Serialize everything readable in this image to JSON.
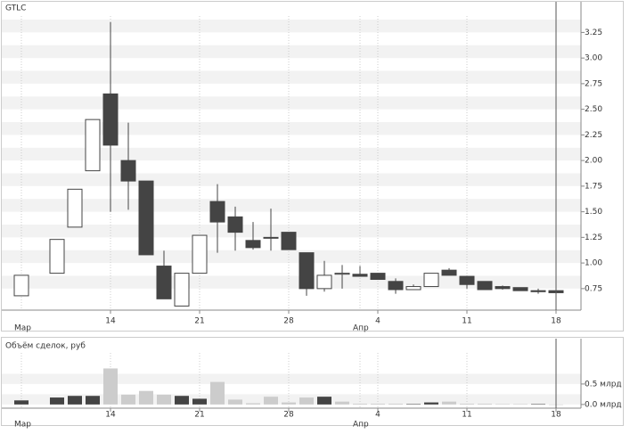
{
  "chart_data": [
    {
      "type": "candlestick",
      "title": "GTLC",
      "x": [
        0,
        2,
        3,
        4,
        5,
        6,
        7,
        8,
        9,
        10,
        11,
        12,
        13,
        14,
        15,
        16,
        17,
        18,
        19,
        20,
        21,
        22,
        23,
        24,
        25,
        26,
        27,
        28,
        29,
        30
      ],
      "open": [
        0.68,
        0.9,
        1.35,
        1.9,
        2.65,
        2.0,
        1.8,
        0.97,
        0.58,
        0.9,
        1.6,
        1.45,
        1.22,
        1.25,
        1.3,
        1.1,
        0.75,
        0.89,
        0.89,
        0.9,
        0.82,
        0.74,
        0.77,
        0.93,
        0.87,
        0.82,
        0.77,
        0.76,
        0.73,
        0.73
      ],
      "high": [
        0.88,
        1.23,
        1.72,
        2.4,
        3.35,
        2.37,
        1.8,
        1.12,
        0.9,
        1.27,
        1.77,
        1.55,
        1.4,
        1.53,
        1.3,
        1.1,
        1.02,
        0.98,
        0.97,
        0.9,
        0.85,
        0.79,
        0.9,
        0.95,
        0.87,
        0.82,
        0.78,
        0.76,
        0.75,
        0.73
      ],
      "low": [
        0.68,
        0.9,
        1.35,
        1.9,
        1.5,
        1.52,
        1.08,
        0.65,
        0.58,
        0.9,
        1.1,
        1.12,
        1.13,
        1.12,
        1.13,
        0.68,
        0.72,
        0.75,
        0.87,
        0.84,
        0.7,
        0.74,
        0.77,
        0.88,
        0.75,
        0.74,
        0.74,
        0.73,
        0.7,
        0.71
      ],
      "close": [
        0.88,
        1.23,
        1.72,
        2.4,
        2.15,
        1.8,
        1.08,
        0.65,
        0.9,
        1.27,
        1.4,
        1.3,
        1.15,
        1.25,
        1.13,
        0.75,
        0.88,
        0.9,
        0.87,
        0.84,
        0.74,
        0.77,
        0.9,
        0.88,
        0.79,
        0.74,
        0.75,
        0.73,
        0.72,
        0.71
      ],
      "up_color": "#ffffff",
      "down_color": "#444444",
      "xlim": [
        -1.1,
        31.4
      ],
      "xticks": [
        {
          "value": 5,
          "label": "14"
        },
        {
          "value": 10,
          "label": "21"
        },
        {
          "value": 15,
          "label": "28"
        },
        {
          "value": 20,
          "label": "4"
        },
        {
          "value": 25,
          "label": "11"
        },
        {
          "value": 30,
          "label": "18"
        }
      ],
      "month_ticks": [
        {
          "value": 0,
          "label": "Мар"
        },
        {
          "value": 19,
          "label": "Апр"
        }
      ],
      "ylim": [
        0.54,
        3.41
      ],
      "yticks": [
        0.75,
        {
          "value": 1,
          "label": "1.00"
        },
        1.25,
        {
          "value": 1.5,
          "label": "1.50"
        },
        1.75,
        {
          "value": 2,
          "label": "2.00"
        },
        2.25,
        {
          "value": 2.5,
          "label": "2.50"
        },
        2.75,
        {
          "value": 3,
          "label": "3.00"
        },
        3.25
      ]
    },
    {
      "type": "bar",
      "title": "Объём сделок, руб",
      "x": [
        0,
        2,
        3,
        4,
        5,
        6,
        7,
        8,
        9,
        10,
        11,
        12,
        13,
        14,
        15,
        16,
        17,
        18,
        19,
        20,
        21,
        22,
        23,
        24,
        25,
        26,
        27,
        28,
        29,
        30
      ],
      "values": [
        0.1,
        0.17,
        0.21,
        0.21,
        0.88,
        0.24,
        0.33,
        0.24,
        0.21,
        0.14,
        0.55,
        0.12,
        0.03,
        0.19,
        0.05,
        0.17,
        0.19,
        0.07,
        0.02,
        0.02,
        0.02,
        0.01,
        0.05,
        0.07,
        0.02,
        0.02,
        0.01,
        0.01,
        0.01,
        0.0
      ],
      "colors": [
        "#444444",
        "#444444",
        "#444444",
        "#444444",
        "#cccccc",
        "#cccccc",
        "#cccccc",
        "#cccccc",
        "#444444",
        "#444444",
        "#cccccc",
        "#cccccc",
        "#cccccc",
        "#cccccc",
        "#cccccc",
        "#cccccc",
        "#444444",
        "#cccccc",
        "#cccccc",
        "#cccccc",
        "#cccccc",
        "#444444",
        "#444444",
        "#cccccc",
        "#cccccc",
        "#cccccc",
        "#cccccc",
        "#cccccc",
        "#444444",
        "#cccccc"
      ],
      "xlim": [
        -1.1,
        31.4
      ],
      "xticks": [
        {
          "value": 5,
          "label": "14"
        },
        {
          "value": 10,
          "label": "21"
        },
        {
          "value": 15,
          "label": "28"
        },
        {
          "value": 20,
          "label": "4"
        },
        {
          "value": 25,
          "label": "11"
        },
        {
          "value": 30,
          "label": "18"
        }
      ],
      "month_ticks": [
        {
          "value": 0,
          "label": "Мар"
        },
        {
          "value": 19,
          "label": "Апр"
        }
      ],
      "ylim": [
        -0.09,
        1.26
      ],
      "yticks": [
        {
          "value": 0,
          "label": "0.0 млрд"
        },
        {
          "value": 0.5,
          "label": "0.5 млрд"
        }
      ]
    }
  ]
}
